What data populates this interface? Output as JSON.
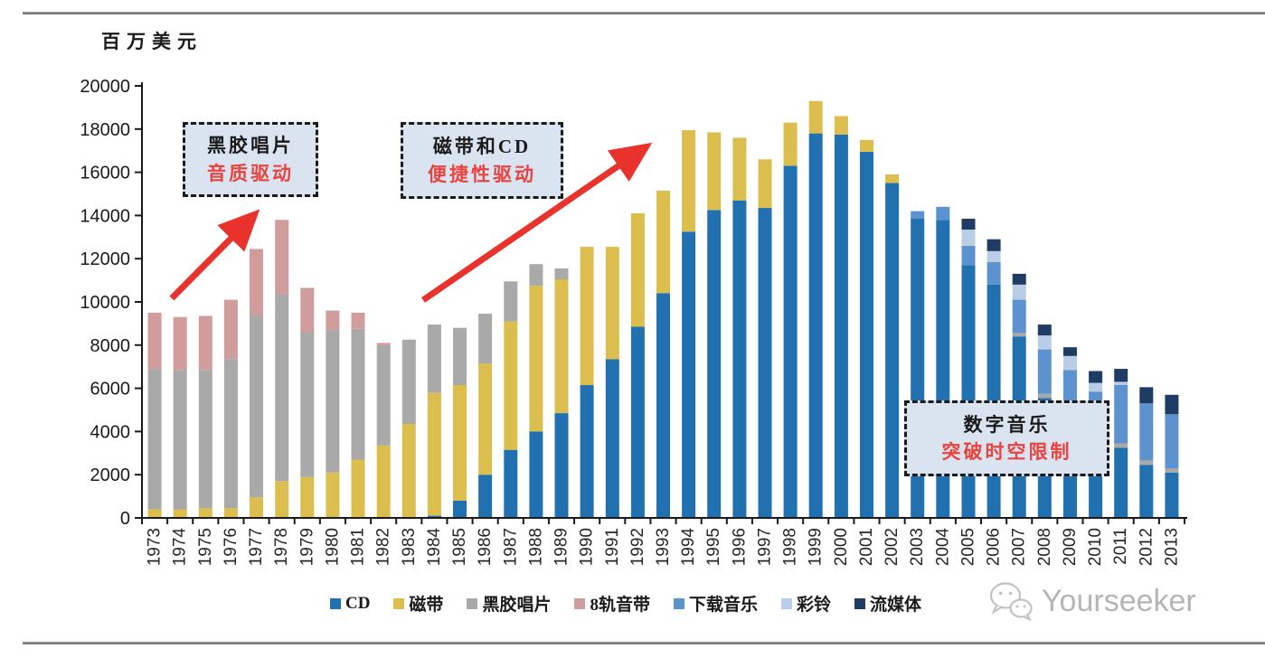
{
  "unit_label": "百万美元",
  "chart_data": {
    "type": "bar",
    "stacked": true,
    "title": "",
    "ylabel": "百万美元",
    "xlabel": "",
    "ylim": [
      0,
      20000
    ],
    "ytick_step": 2000,
    "grid": false,
    "legend_position": "bottom",
    "categories": [
      "1973",
      "1974",
      "1975",
      "1976",
      "1977",
      "1978",
      "1979",
      "1980",
      "1981",
      "1982",
      "1983",
      "1984",
      "1985",
      "1986",
      "1987",
      "1988",
      "1989",
      "1990",
      "1991",
      "1992",
      "1993",
      "1994",
      "1995",
      "1996",
      "1997",
      "1998",
      "1999",
      "2000",
      "2001",
      "2002",
      "2003",
      "2004",
      "2005",
      "2006",
      "2007",
      "2008",
      "2009",
      "2010",
      "2011",
      "2012",
      "2013"
    ],
    "series": [
      {
        "name": "CD",
        "color": "#2170B0",
        "values": [
          0,
          0,
          0,
          0,
          0,
          0,
          0,
          0,
          0,
          0,
          0,
          100,
          800,
          2000,
          3150,
          4000,
          4850,
          6150,
          7350,
          8850,
          10400,
          13250,
          14250,
          14700,
          14350,
          16300,
          17800,
          17750,
          16950,
          15500,
          13850,
          13800,
          11700,
          10800,
          8400,
          5550,
          3800,
          3300,
          3250,
          2450,
          2100
        ]
      },
      {
        "name": "磁带",
        "color": "#DCBE4F",
        "values": [
          400,
          400,
          450,
          450,
          950,
          1700,
          1900,
          2100,
          2700,
          3350,
          4350,
          5700,
          5350,
          5150,
          5950,
          6750,
          6200,
          6400,
          5200,
          5250,
          4750,
          4700,
          3600,
          2900,
          2250,
          2000,
          1500,
          850,
          550,
          400,
          0,
          0,
          0,
          0,
          0,
          0,
          0,
          0,
          0,
          0,
          0
        ]
      },
      {
        "name": "黑胶唱片",
        "color": "#A9A9A9",
        "values": [
          6500,
          6450,
          6400,
          6900,
          8400,
          8650,
          6700,
          6600,
          6050,
          4650,
          3900,
          3150,
          2650,
          2300,
          1850,
          1000,
          500,
          0,
          0,
          0,
          0,
          0,
          0,
          0,
          0,
          0,
          0,
          0,
          0,
          0,
          0,
          0,
          0,
          0,
          150,
          200,
          150,
          150,
          200,
          200,
          200
        ]
      },
      {
        "name": "8轨音带",
        "color": "#D19C9C",
        "values": [
          2600,
          2450,
          2500,
          2750,
          3100,
          3450,
          2050,
          900,
          750,
          100,
          0,
          0,
          0,
          0,
          0,
          0,
          0,
          0,
          0,
          0,
          0,
          0,
          0,
          0,
          0,
          0,
          0,
          0,
          0,
          0,
          0,
          0,
          0,
          0,
          0,
          0,
          0,
          0,
          0,
          0,
          0
        ]
      },
      {
        "name": "下载音乐",
        "color": "#5C93CF",
        "values": [
          0,
          0,
          0,
          0,
          0,
          0,
          0,
          0,
          0,
          0,
          0,
          0,
          0,
          0,
          0,
          0,
          0,
          0,
          0,
          0,
          0,
          0,
          0,
          0,
          0,
          0,
          0,
          0,
          0,
          0,
          350,
          600,
          900,
          1050,
          1550,
          2050,
          2900,
          2400,
          2700,
          2650,
          2500
        ]
      },
      {
        "name": "彩铃",
        "color": "#BACDE6",
        "values": [
          0,
          0,
          0,
          0,
          0,
          0,
          0,
          0,
          0,
          0,
          0,
          0,
          0,
          0,
          0,
          0,
          0,
          0,
          0,
          0,
          0,
          0,
          0,
          0,
          0,
          0,
          0,
          0,
          0,
          0,
          0,
          0,
          750,
          500,
          700,
          650,
          650,
          400,
          150,
          0,
          0
        ]
      },
      {
        "name": "流媒体",
        "color": "#1E3C64",
        "values": [
          0,
          0,
          0,
          0,
          0,
          0,
          0,
          0,
          0,
          0,
          0,
          0,
          0,
          0,
          0,
          0,
          0,
          0,
          0,
          0,
          0,
          0,
          0,
          0,
          0,
          0,
          0,
          0,
          0,
          0,
          0,
          0,
          500,
          550,
          500,
          500,
          400,
          550,
          600,
          750,
          900
        ]
      }
    ]
  },
  "annotations": [
    {
      "line1": "黑胶唱片",
      "line2": "音质驱动"
    },
    {
      "line1": "磁带和CD",
      "line2": "便捷性驱动"
    },
    {
      "line1": "数字音乐",
      "line2": "突破时空限制"
    }
  ],
  "watermark": {
    "text": "Yourseeker"
  },
  "colors": {
    "arrow_red": "#E8322B",
    "annotation_red": "#E8433E",
    "annotation_bg": "#DAE4F1",
    "axis": "#1A1A1A",
    "watermark_gray": "#B5B5B5"
  }
}
